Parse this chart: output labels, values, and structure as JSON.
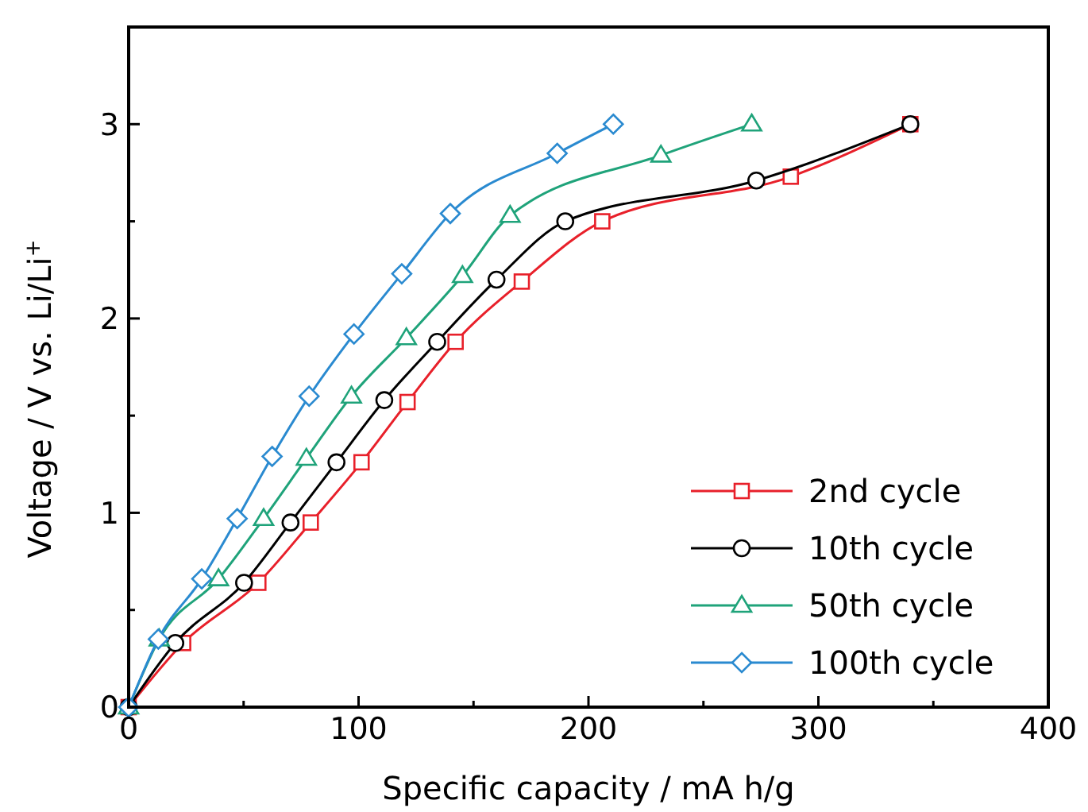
{
  "chart_data": {
    "type": "line",
    "xlabel": "Specific capacity / mA h/g",
    "ylabel": "Voltage / V vs. Li/Li$^{+}$",
    "xlim": [
      0,
      400
    ],
    "ylim": [
      0,
      3.5
    ],
    "xticks": [
      0,
      {
        "value": 50,
        "label": null
      },
      100,
      {
        "value": 150,
        "label": null
      },
      200,
      {
        "value": 250,
        "label": null
      },
      300,
      {
        "value": 350,
        "label": null
      },
      400
    ],
    "yticks": [
      0,
      {
        "value": 0.5,
        "label": null
      },
      1,
      {
        "value": 1.5,
        "label": null
      },
      2,
      {
        "value": 2.5,
        "label": null
      },
      3
    ],
    "grid": false,
    "legend": "bottom right",
    "line_style": "solid",
    "series": [
      {
        "name": "2nd cycle",
        "color": "#e8202a",
        "marker": "square",
        "x": [
          0,
          23.7,
          56.4,
          79.2,
          101.3,
          121.3,
          142.2,
          171,
          206,
          288,
          340
        ],
        "values": [
          0,
          0.33,
          0.64,
          0.95,
          1.26,
          1.57,
          1.88,
          2.19,
          2.5,
          2.73,
          3.0
        ]
      },
      {
        "name": "10th cycle",
        "color": "#000000",
        "marker": "circle",
        "x": [
          0,
          20.3,
          50.2,
          70.4,
          90.4,
          111.2,
          134.2,
          160,
          189.9,
          273,
          340
        ],
        "values": [
          0,
          0.33,
          0.64,
          0.95,
          1.26,
          1.58,
          1.88,
          2.2,
          2.5,
          2.71,
          3.0
        ]
      },
      {
        "name": "50th cycle",
        "color": "#1fa37a",
        "marker": "triangle",
        "x": [
          0,
          13.3,
          39.1,
          58.7,
          77.3,
          96.9,
          120.8,
          145.2,
          165.9,
          231.5,
          271
        ],
        "values": [
          0,
          0.35,
          0.66,
          0.97,
          1.28,
          1.6,
          1.9,
          2.22,
          2.53,
          2.84,
          3.0
        ]
      },
      {
        "name": "100th cycle",
        "color": "#2a8ad0",
        "marker": "diamond",
        "x": [
          0,
          12.9,
          31.8,
          47.2,
          62.4,
          78.5,
          98,
          118.8,
          139.9,
          186.4,
          210.8
        ],
        "values": [
          0,
          0.35,
          0.66,
          0.97,
          1.29,
          1.6,
          1.92,
          2.23,
          2.54,
          2.85,
          3.0
        ]
      }
    ]
  }
}
